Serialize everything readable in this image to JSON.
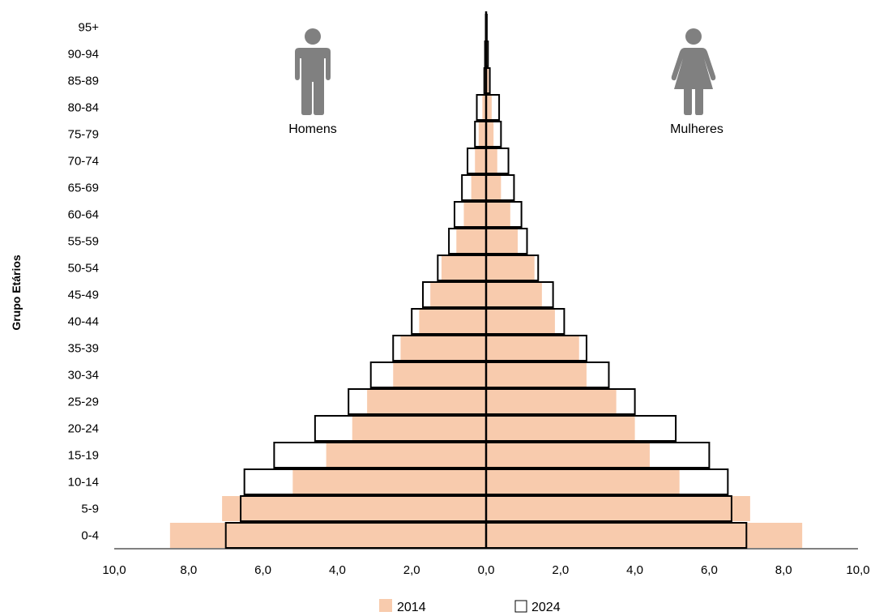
{
  "chart_data": {
    "type": "bar",
    "orientation": "horizontal-population-pyramid",
    "ylabel": "Grupo Etários",
    "categories": [
      "0-4",
      "5-9",
      "10-14",
      "15-19",
      "20-24",
      "25-29",
      "30-34",
      "35-39",
      "40-44",
      "45-49",
      "50-54",
      "55-59",
      "60-64",
      "65-69",
      "70-74",
      "75-79",
      "80-84",
      "85-89",
      "90-94",
      "95+"
    ],
    "series": [
      {
        "name": "2014",
        "color": "#f8cbad",
        "style": "filled",
        "men": [
          8.5,
          7.1,
          5.2,
          4.3,
          3.6,
          3.2,
          2.5,
          2.3,
          1.8,
          1.5,
          1.2,
          0.8,
          0.6,
          0.4,
          0.3,
          0.2,
          0.1,
          0.05,
          0.02,
          0.01
        ],
        "women": [
          8.5,
          7.1,
          5.2,
          4.4,
          4.0,
          3.5,
          2.7,
          2.5,
          1.85,
          1.5,
          1.3,
          0.85,
          0.65,
          0.4,
          0.3,
          0.2,
          0.15,
          0.07,
          0.03,
          0.01
        ]
      },
      {
        "name": "2024",
        "color": "#000000",
        "style": "outline",
        "men": [
          7.0,
          6.6,
          6.5,
          5.7,
          4.6,
          3.7,
          3.1,
          2.5,
          2.0,
          1.7,
          1.3,
          1.0,
          0.85,
          0.65,
          0.5,
          0.3,
          0.25,
          0.05,
          0.03,
          0.01
        ],
        "women": [
          7.0,
          6.6,
          6.5,
          6.0,
          5.1,
          4.0,
          3.3,
          2.7,
          2.1,
          1.8,
          1.4,
          1.1,
          0.95,
          0.75,
          0.6,
          0.4,
          0.35,
          0.1,
          0.05,
          0.02
        ]
      }
    ],
    "xlim": [
      -10,
      10
    ],
    "x_tick_values": [
      -10,
      -8,
      -6,
      -4,
      -2,
      0,
      2,
      4,
      6,
      8,
      10
    ],
    "x_tick_labels": [
      "10,0",
      "8,0",
      "6,0",
      "4,0",
      "2,0",
      "0,0",
      "2,0",
      "4,0",
      "6,0",
      "8,0",
      "10,0"
    ],
    "grid": false,
    "legend_position": "bottom",
    "annotations": [
      {
        "label": "Homens",
        "side": "left",
        "icon": "man-icon"
      },
      {
        "label": "Mulheres",
        "side": "right",
        "icon": "woman-icon"
      }
    ],
    "icon_color": "#808080"
  }
}
